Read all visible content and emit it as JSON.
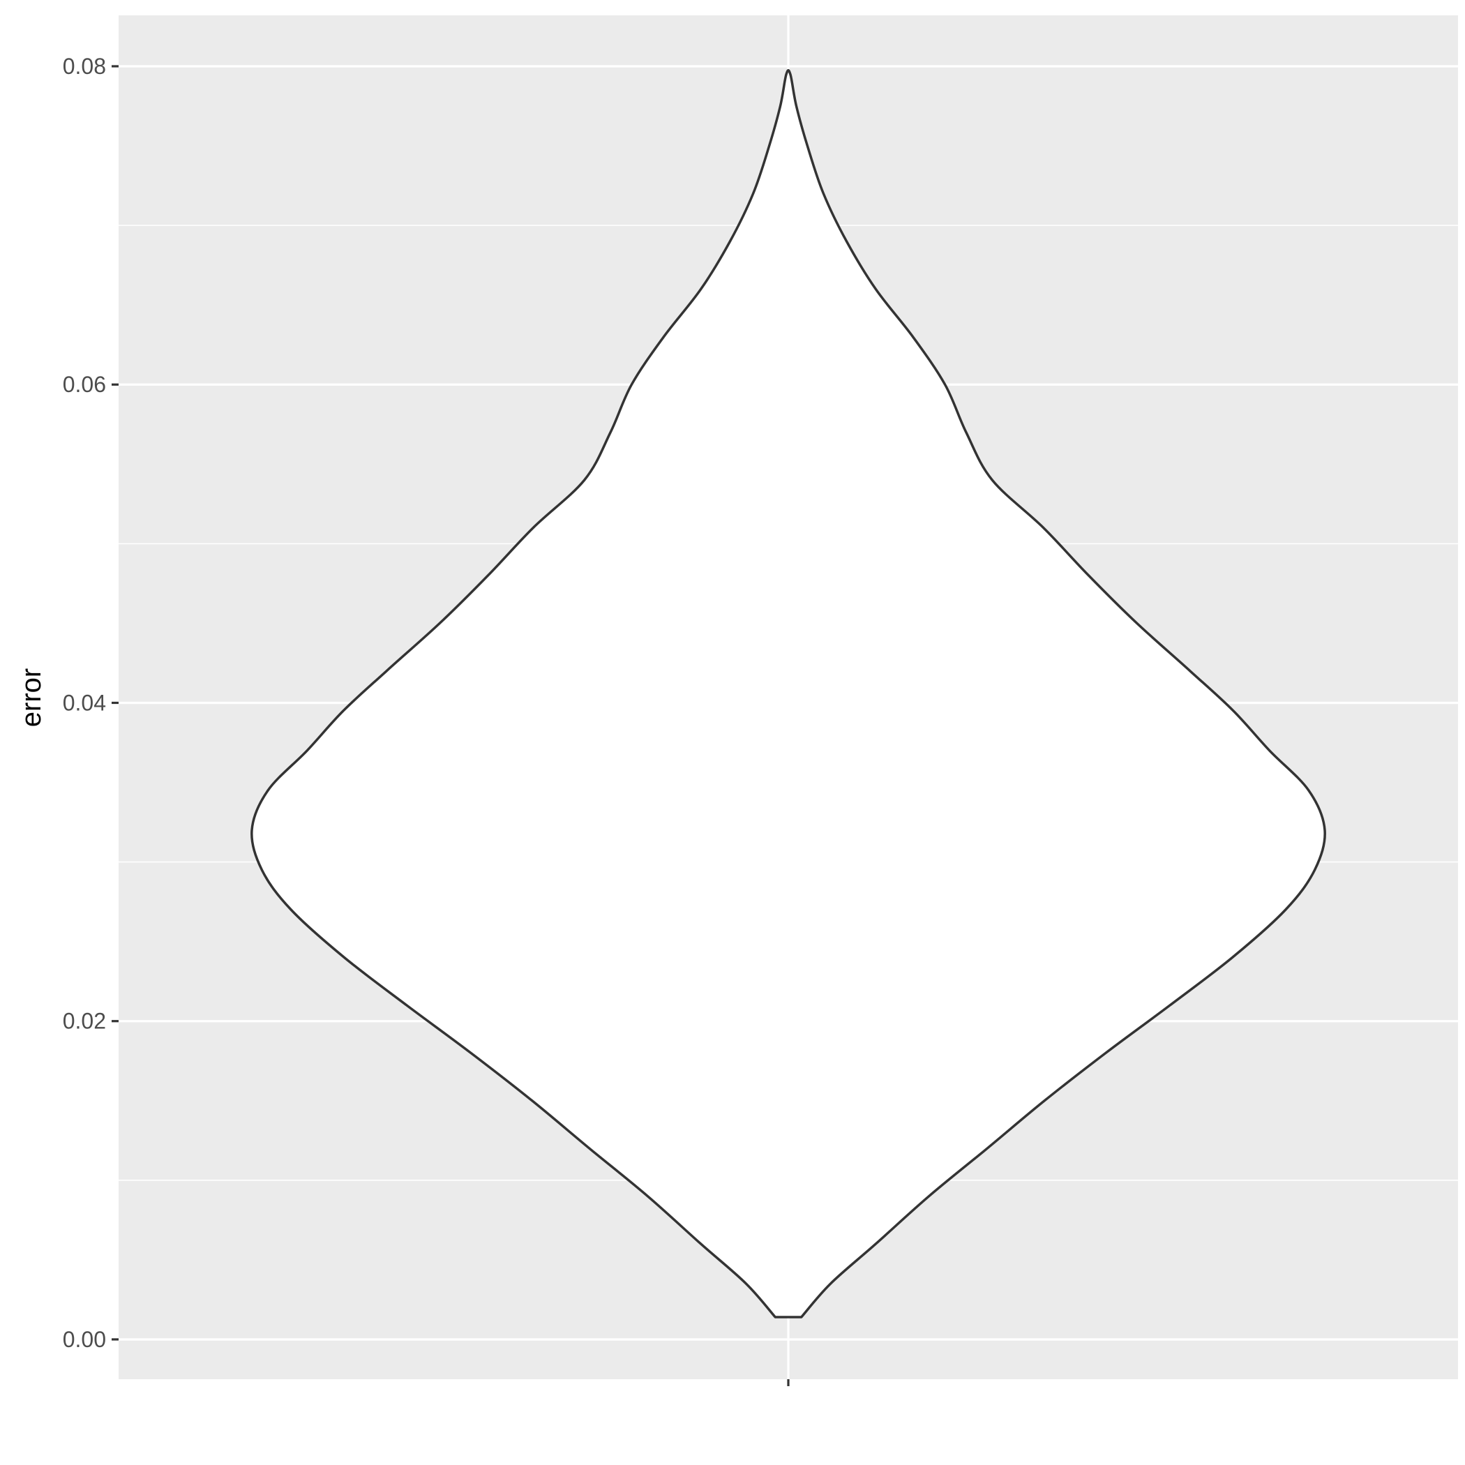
{
  "chart_data": {
    "type": "violin",
    "title": "",
    "xlabel": "",
    "ylabel": "error",
    "ylim": [
      -0.0025,
      0.0832
    ],
    "y_ticks": [
      0.0,
      0.02,
      0.04,
      0.06,
      0.08
    ],
    "y_tick_labels": [
      "0.00",
      "0.02",
      "0.04",
      "0.06",
      "0.08"
    ],
    "x_categories": [
      ""
    ],
    "grid": true,
    "legend": "none",
    "colors": {
      "panel_background": "#ebebeb",
      "grid_line": "#ffffff",
      "violin_fill": "#ffffff",
      "violin_outline": "#333333",
      "tick_mark": "#333333"
    },
    "violin": {
      "y_min": 0.0014,
      "y_max": 0.0795,
      "density_profile": [
        {
          "y": 0.0014,
          "halfwidth": 0.013
        },
        {
          "y": 0.0035,
          "halfwidth": 0.042
        },
        {
          "y": 0.006,
          "halfwidth": 0.087
        },
        {
          "y": 0.009,
          "halfwidth": 0.14
        },
        {
          "y": 0.012,
          "halfwidth": 0.198
        },
        {
          "y": 0.015,
          "halfwidth": 0.255
        },
        {
          "y": 0.018,
          "halfwidth": 0.316
        },
        {
          "y": 0.021,
          "halfwidth": 0.38
        },
        {
          "y": 0.024,
          "halfwidth": 0.442
        },
        {
          "y": 0.027,
          "halfwidth": 0.495
        },
        {
          "y": 0.0295,
          "halfwidth": 0.524
        },
        {
          "y": 0.032,
          "halfwidth": 0.534
        },
        {
          "y": 0.0345,
          "halfwidth": 0.518
        },
        {
          "y": 0.037,
          "halfwidth": 0.479
        },
        {
          "y": 0.0395,
          "halfwidth": 0.443
        },
        {
          "y": 0.042,
          "halfwidth": 0.4
        },
        {
          "y": 0.045,
          "halfwidth": 0.347
        },
        {
          "y": 0.048,
          "halfwidth": 0.299
        },
        {
          "y": 0.051,
          "halfwidth": 0.254
        },
        {
          "y": 0.054,
          "halfwidth": 0.203
        },
        {
          "y": 0.057,
          "halfwidth": 0.177
        },
        {
          "y": 0.06,
          "halfwidth": 0.156
        },
        {
          "y": 0.063,
          "halfwidth": 0.124
        },
        {
          "y": 0.066,
          "halfwidth": 0.087
        },
        {
          "y": 0.069,
          "halfwidth": 0.058
        },
        {
          "y": 0.072,
          "halfwidth": 0.035
        },
        {
          "y": 0.075,
          "halfwidth": 0.019
        },
        {
          "y": 0.0775,
          "halfwidth": 0.008
        },
        {
          "y": 0.0795,
          "halfwidth": 0.002
        }
      ]
    }
  }
}
